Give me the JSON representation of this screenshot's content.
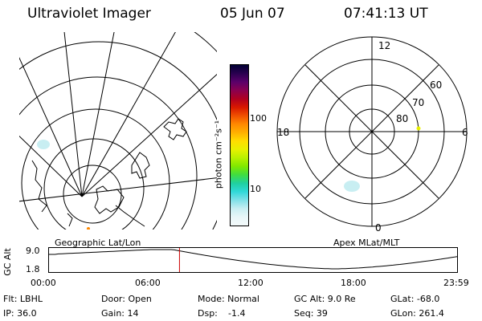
{
  "header": {
    "title": "Ultraviolet Imager",
    "date": "05 Jun 07",
    "time": "07:41:13 UT"
  },
  "colorbar": {
    "unit_label": "photon cm⁻²s⁻¹",
    "ticks": [
      "100",
      "10"
    ],
    "colors": [
      "#000033",
      "#2a0050",
      "#5a006a",
      "#8a0050",
      "#b00020",
      "#d81800",
      "#f05000",
      "#ff8800",
      "#ffb000",
      "#ffdd00",
      "#e8f000",
      "#b8f000",
      "#80e800",
      "#40dd40",
      "#20d0a0",
      "#30d8d8",
      "#80e0e8",
      "#c8eef2",
      "#e8f6f8",
      "#f4fafb"
    ]
  },
  "geo_panel": {
    "label": "Geographic Lat/Lon"
  },
  "mlt_panel": {
    "label": "Apex MLat/MLT",
    "mlt_labels": {
      "top": "12",
      "left": "18",
      "right": "6",
      "bottom": "0"
    },
    "lat_labels": [
      "60",
      "70",
      "80"
    ]
  },
  "timeline": {
    "ylabel": "GC Alt",
    "yticks": [
      "9.0",
      "1.8"
    ],
    "xticks": [
      "00:00",
      "06:00",
      "12:00",
      "18:00",
      "23:59"
    ],
    "current_hour": 7.69
  },
  "footer": {
    "row1": {
      "filter": "Flt: LBHL",
      "door": "Door: Open",
      "mode": "Mode: Normal",
      "gc_alt": "GC Alt: 9.0 Re",
      "glat": "GLat: -68.0"
    },
    "row2": {
      "ip": "IP: 36.0",
      "gain": "Gain: 14",
      "dsp_label": "Dsp:",
      "dsp_value": "-1.4",
      "seq": "Seq: 39",
      "glon": "GLon: 261.4"
    }
  }
}
